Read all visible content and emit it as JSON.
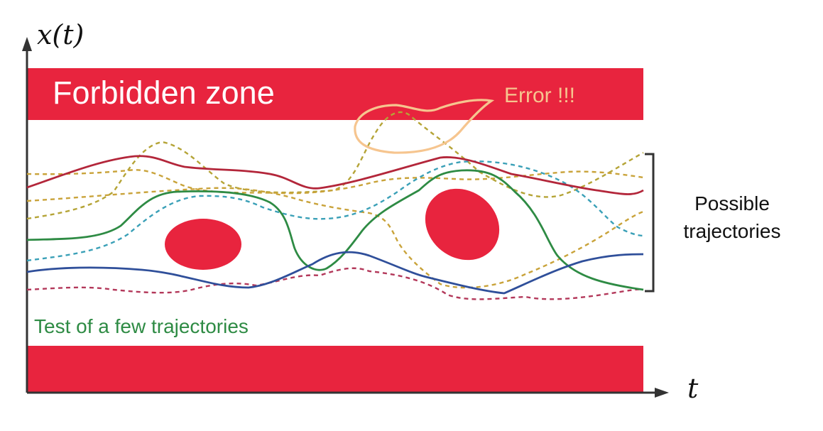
{
  "axes": {
    "y_label": "x(t)",
    "x_label": "t"
  },
  "zones": {
    "top_label": "Forbidden zone",
    "colors": {
      "forbidden": "#E8243E"
    }
  },
  "annotations": {
    "error_label": "Error !!!",
    "error_color": "#F6C58F",
    "bracket_label_line1": "Possible",
    "bracket_label_line2": "trajectories",
    "test_label": "Test of a few trajectories",
    "test_label_color": "#2E8B44"
  },
  "trajectories": {
    "solid": [
      {
        "name": "red-solid",
        "color": "#B3263A"
      },
      {
        "name": "green-solid",
        "color": "#2E8B44"
      },
      {
        "name": "blue-solid",
        "color": "#2F4F9A"
      }
    ],
    "dashed": [
      {
        "name": "olive-dashed-1",
        "color": "#B5A437"
      },
      {
        "name": "olive-dashed-2",
        "color": "#C9A33A"
      },
      {
        "name": "teal-dashed",
        "color": "#3AA0B7"
      },
      {
        "name": "maroon-dashed",
        "color": "#B3385A"
      }
    ]
  }
}
